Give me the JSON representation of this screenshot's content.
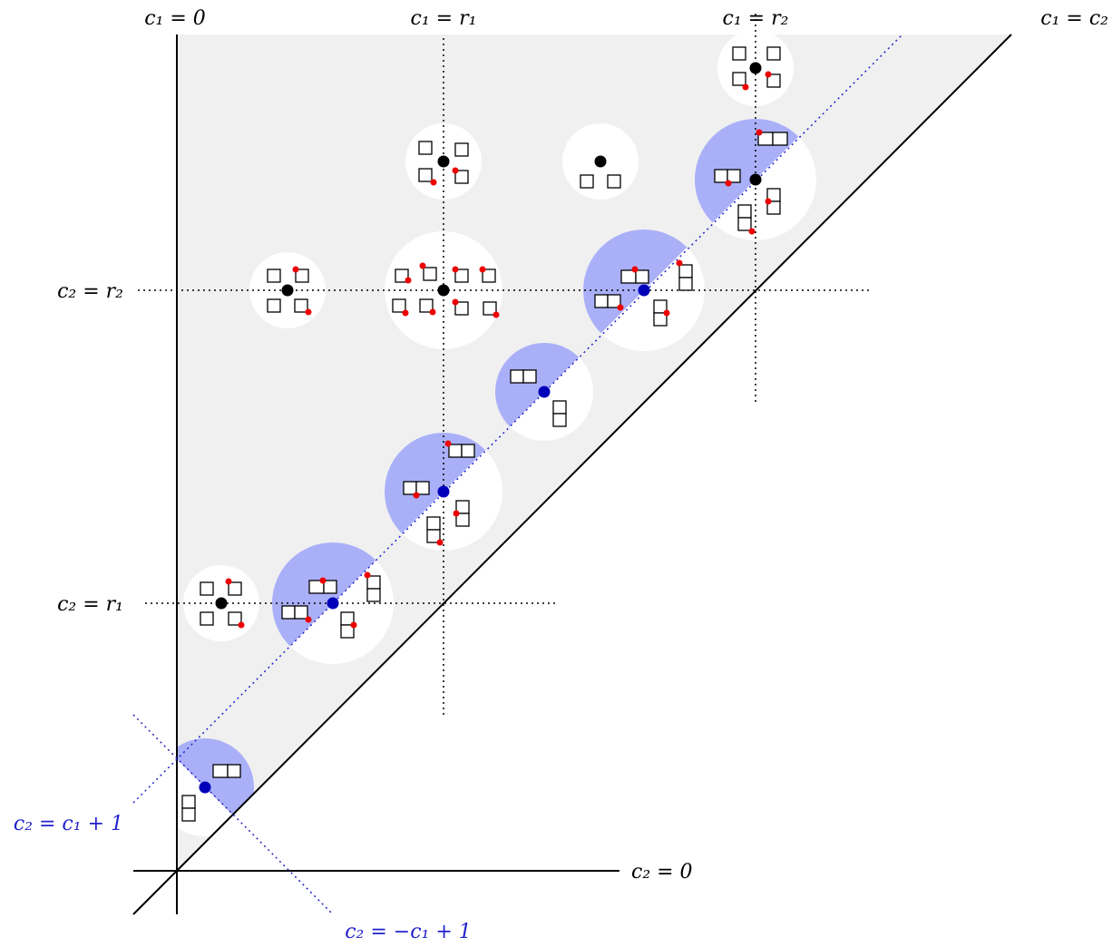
{
  "labels": {
    "c1_zero": "c₁ = 0",
    "c1_r1": "c₁ = r₁",
    "c1_r2": "c₁ = r₂",
    "c1_c2": "c₁ = c₂",
    "c2_r2": "c₂ = r₂",
    "c2_r1": "c₂ = r₁",
    "c2_zero": "c₂ = 0",
    "c2_c1_plus_1": "c₂ = c₁ + 1",
    "c2_minus_c1_plus_1": "c₂ = −c₁ + 1"
  },
  "colors": {
    "region_fill": "#f0f0f0",
    "neighborhood_fill": "#ffffff",
    "half_disk_fill": "#aab0f8",
    "blue_point": "#0000bb",
    "black_point": "#000000",
    "red_dot": "#ee0000",
    "blue_line": "#2222cc",
    "label_blue": "#2222cc"
  },
  "icons": {
    "cell": "square-cell",
    "horizontal_domino": "two-cells-side-by-side",
    "vertical_domino": "two-cells-stacked"
  }
}
